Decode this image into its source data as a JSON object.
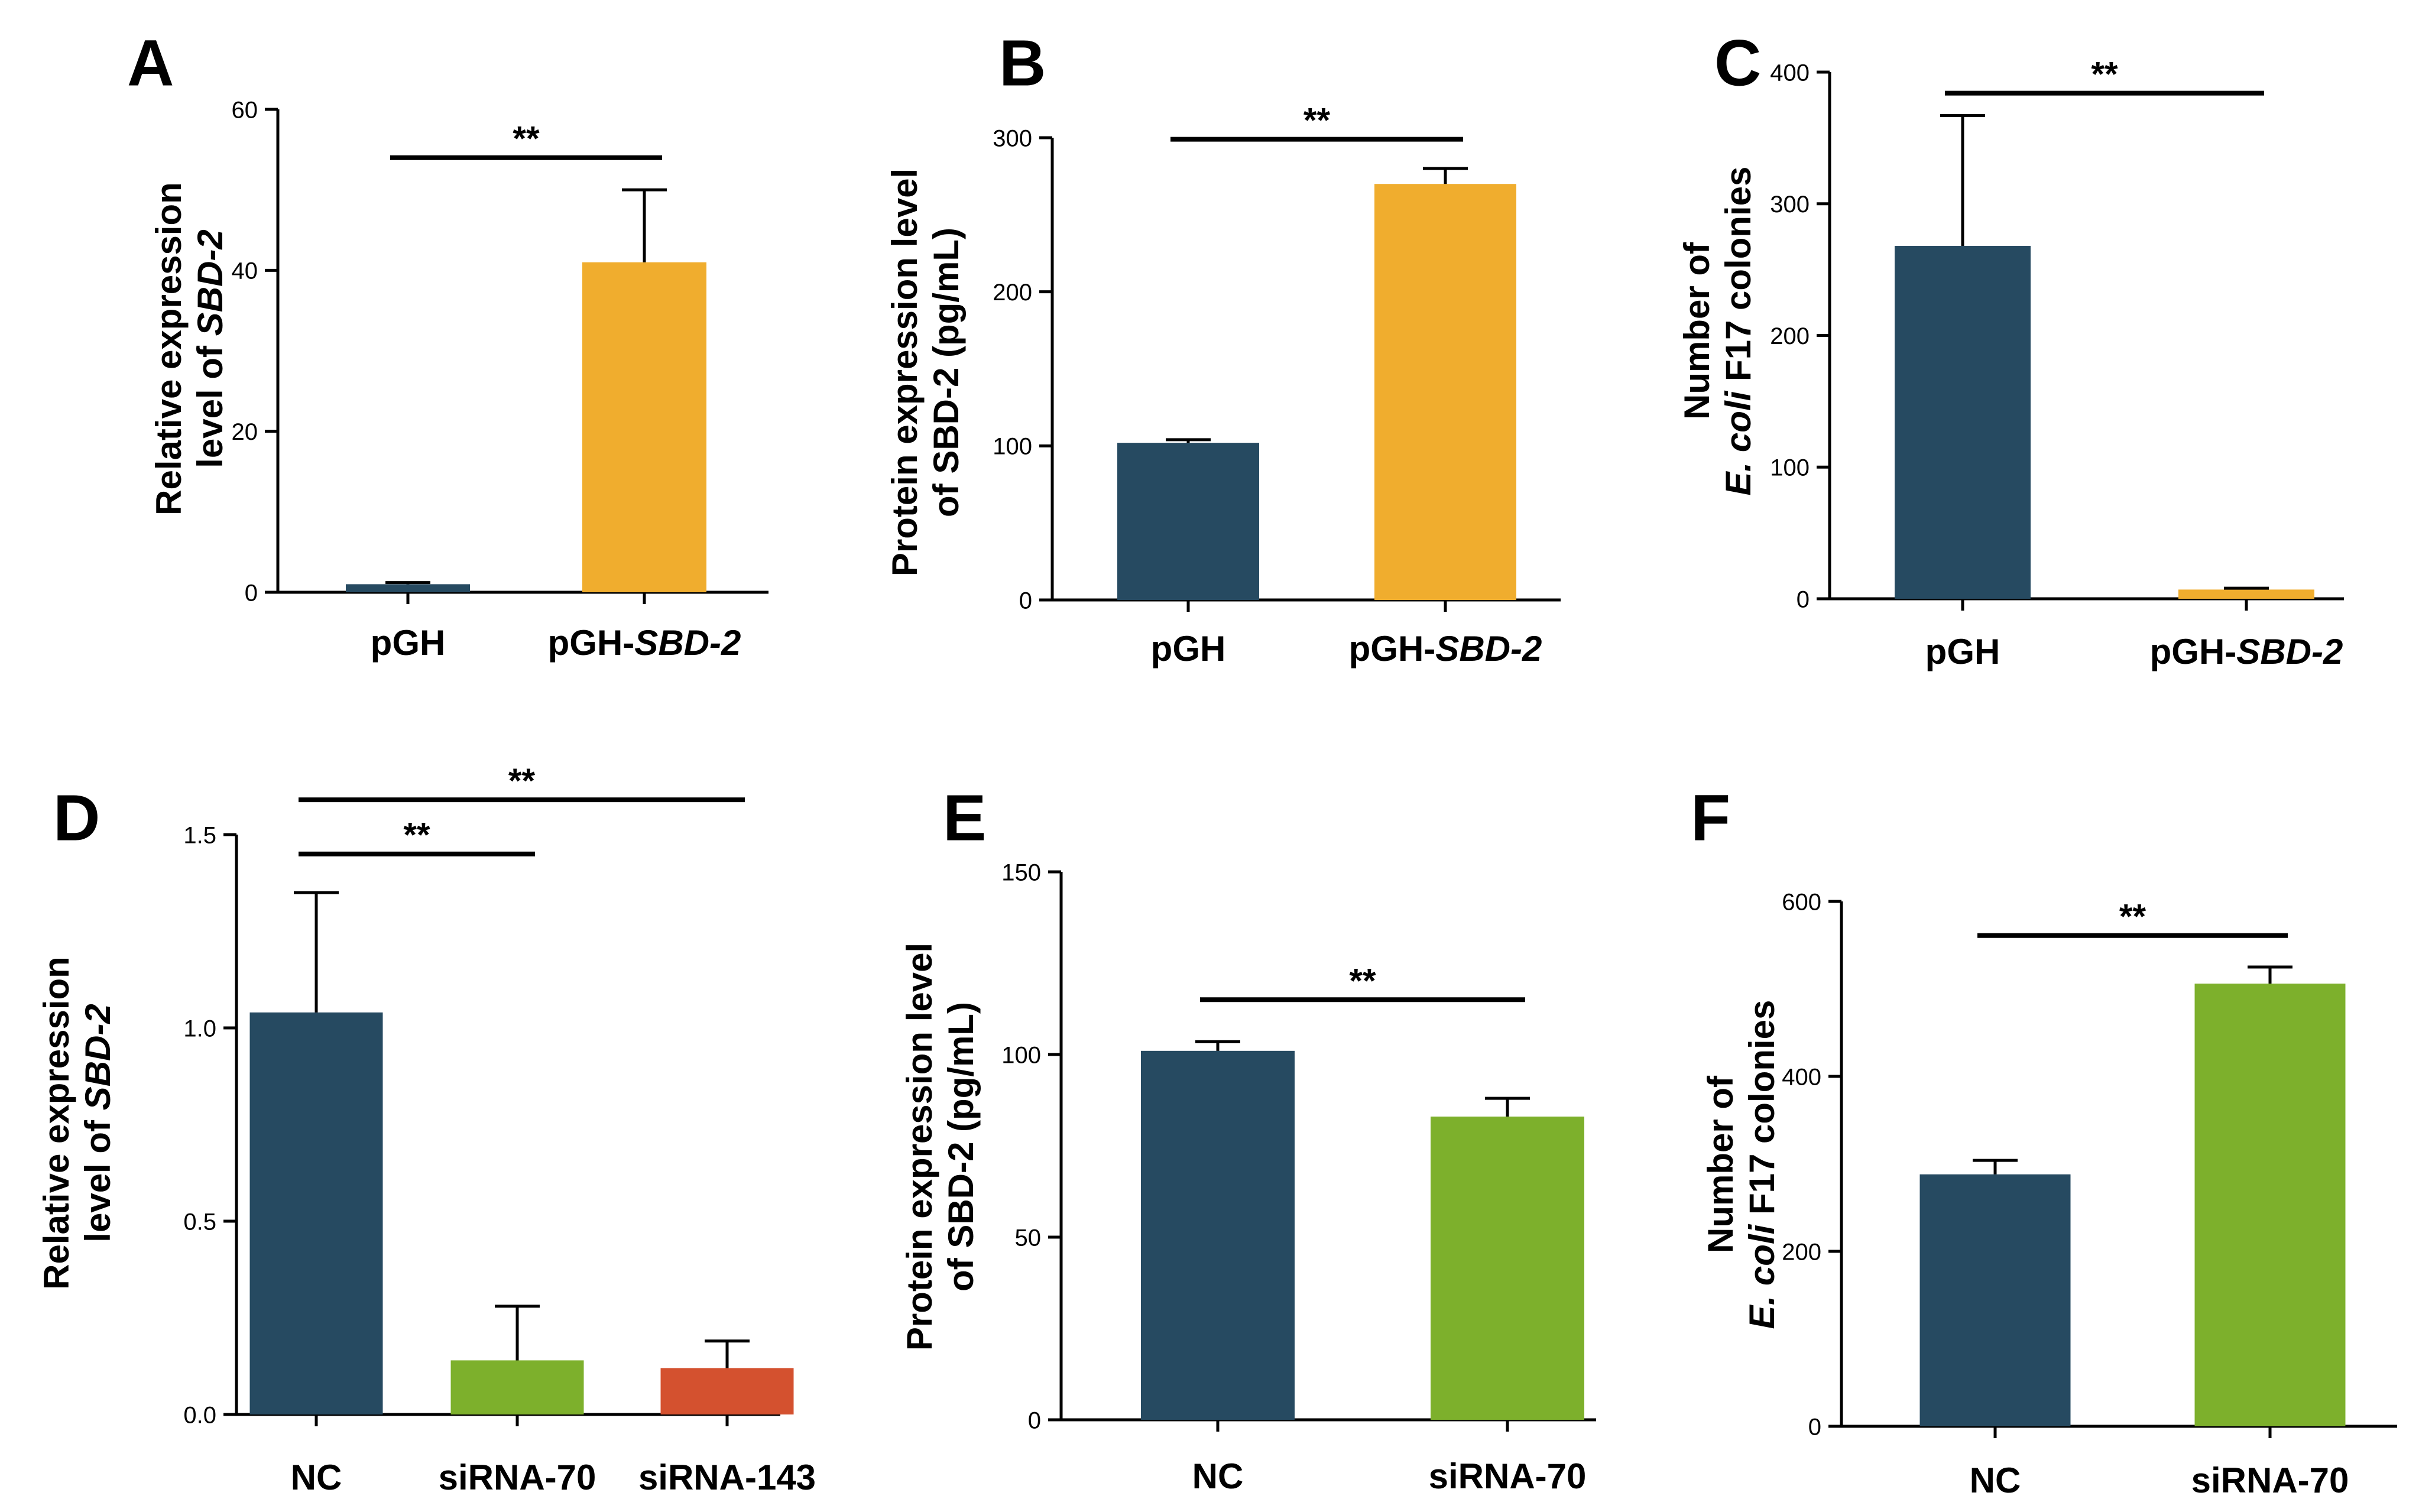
{
  "colors": {
    "navy": "#264a61",
    "orange": "#f0ad2e",
    "green": "#7db02c",
    "red": "#d4512f",
    "ink": "#000000"
  },
  "chart_data": [
    {
      "panel": "A",
      "type": "bar",
      "categories": [
        "pGH",
        "pGH-SBD-2"
      ],
      "category_parts": [
        [
          "pGH",
          ""
        ],
        [
          "pGH-",
          "SBD-2"
        ]
      ],
      "values": [
        1.0,
        41.0
      ],
      "errors": [
        0.2,
        9.0
      ],
      "bar_colors": [
        "#264a61",
        "#f0ad2e"
      ],
      "ylim": [
        0,
        60
      ],
      "yticks": [
        0,
        20,
        40,
        60
      ],
      "ytick_labels": [
        "0",
        "20",
        "40",
        "60"
      ],
      "ylabel_lines": [
        [
          "Relative expression",
          ""
        ],
        [
          "level of ",
          "SBD-2"
        ]
      ],
      "significance": [
        {
          "from": 0,
          "to": 1,
          "level": 54,
          "label": "**"
        }
      ]
    },
    {
      "panel": "B",
      "type": "bar",
      "categories": [
        "pGH",
        "pGH-SBD-2"
      ],
      "category_parts": [
        [
          "pGH",
          ""
        ],
        [
          "pGH-",
          "SBD-2"
        ]
      ],
      "values": [
        102,
        270
      ],
      "errors": [
        2,
        10
      ],
      "bar_colors": [
        "#264a61",
        "#f0ad2e"
      ],
      "ylim": [
        0,
        300
      ],
      "yticks": [
        0,
        100,
        200,
        300
      ],
      "ytick_labels": [
        "0",
        "100",
        "200",
        "300"
      ],
      "ylabel_lines": [
        [
          "Protein expression level",
          ""
        ],
        [
          "of SBD-2 (pg/mL)",
          ""
        ]
      ],
      "significance": [
        {
          "from": 0,
          "to": 1,
          "level": 299,
          "label": "**"
        }
      ]
    },
    {
      "panel": "C",
      "type": "bar",
      "categories": [
        "pGH",
        "pGH-SBD-2"
      ],
      "category_parts": [
        [
          "pGH",
          ""
        ],
        [
          "pGH-",
          "SBD-2"
        ]
      ],
      "values": [
        268,
        7
      ],
      "errors": [
        99,
        1
      ],
      "bar_colors": [
        "#264a61",
        "#f0ad2e"
      ],
      "ylim": [
        0,
        400
      ],
      "yticks": [
        0,
        100,
        200,
        300,
        400
      ],
      "ytick_labels": [
        "0",
        "100",
        "200",
        "300",
        "400"
      ],
      "ylabel_lines": [
        [
          "Number of",
          ""
        ],
        [
          "E. coli",
          " F17 colonies"
        ]
      ],
      "ylabel_italic_first": [
        false,
        true
      ],
      "significance": [
        {
          "from": 0,
          "to": 1,
          "level": 384,
          "label": "**"
        }
      ]
    },
    {
      "panel": "D",
      "type": "bar",
      "categories": [
        "NC",
        "siRNA-70",
        "siRNA-143"
      ],
      "category_parts": [
        [
          "NC",
          ""
        ],
        [
          "siRNA-70",
          ""
        ],
        [
          "siRNA-143",
          ""
        ]
      ],
      "values": [
        1.04,
        0.14,
        0.12
      ],
      "errors": [
        0.31,
        0.14,
        0.07
      ],
      "bar_colors": [
        "#264a61",
        "#7db02c",
        "#d4512f"
      ],
      "ylim": [
        0,
        1.5
      ],
      "yticks": [
        0,
        0.5,
        1.0,
        1.5
      ],
      "ytick_labels": [
        "0.0",
        "0.5",
        "1.0",
        "1.5"
      ],
      "ylabel_lines": [
        [
          "Relative expression",
          ""
        ],
        [
          "level of ",
          "SBD-2"
        ]
      ],
      "significance": [
        {
          "from": 0,
          "to": 1,
          "level": 1.45,
          "label": "**"
        },
        {
          "from": 0,
          "to": 2,
          "level": 1.59,
          "label": "**"
        }
      ]
    },
    {
      "panel": "E",
      "type": "bar",
      "categories": [
        "NC",
        "siRNA-70"
      ],
      "category_parts": [
        [
          "NC",
          ""
        ],
        [
          "siRNA-70",
          ""
        ]
      ],
      "values": [
        101,
        83
      ],
      "errors": [
        2.5,
        5
      ],
      "bar_colors": [
        "#264a61",
        "#7db02c"
      ],
      "ylim": [
        0,
        150
      ],
      "yticks": [
        0,
        50,
        100,
        150
      ],
      "ytick_labels": [
        "0",
        "50",
        "100",
        "150"
      ],
      "ylabel_lines": [
        [
          "Protein expression level",
          ""
        ],
        [
          "of SBD-2 (pg/mL)",
          ""
        ]
      ],
      "significance": [
        {
          "from": 0,
          "to": 1,
          "level": 115,
          "label": "**"
        }
      ]
    },
    {
      "panel": "F",
      "type": "bar",
      "categories": [
        "NC",
        "siRNA-70"
      ],
      "category_parts": [
        [
          "NC",
          ""
        ],
        [
          "siRNA-70",
          ""
        ]
      ],
      "values": [
        288,
        506
      ],
      "errors": [
        16,
        19
      ],
      "bar_colors": [
        "#264a61",
        "#7db02c"
      ],
      "ylim": [
        0,
        600
      ],
      "yticks": [
        0,
        200,
        400,
        600
      ],
      "ytick_labels": [
        "0",
        "200",
        "400",
        "600"
      ],
      "ylabel_lines": [
        [
          "Number of",
          ""
        ],
        [
          "E. coli",
          " F17 colonies"
        ]
      ],
      "ylabel_italic_first": [
        false,
        true
      ],
      "significance": [
        {
          "from": 0,
          "to": 1,
          "level": 561,
          "label": "**"
        }
      ]
    }
  ]
}
